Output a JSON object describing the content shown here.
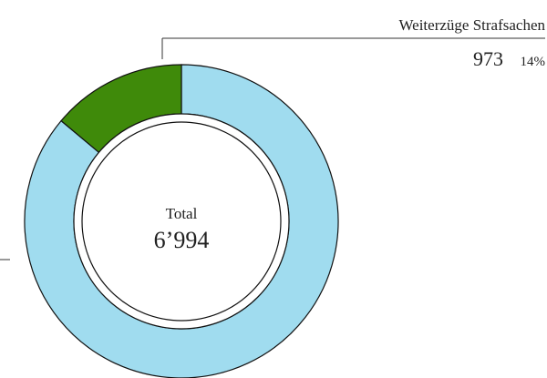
{
  "chart_data": {
    "type": "donut",
    "categories": [
      null,
      "Weiterzüge Strafsachen"
    ],
    "values": [
      6021,
      973
    ],
    "share_labels": [
      null,
      "14%"
    ],
    "colors": [
      "#a0dcef",
      "#3f8a0a"
    ],
    "center_title": "Total",
    "total": 6994,
    "total_label": "6’994"
  }
}
